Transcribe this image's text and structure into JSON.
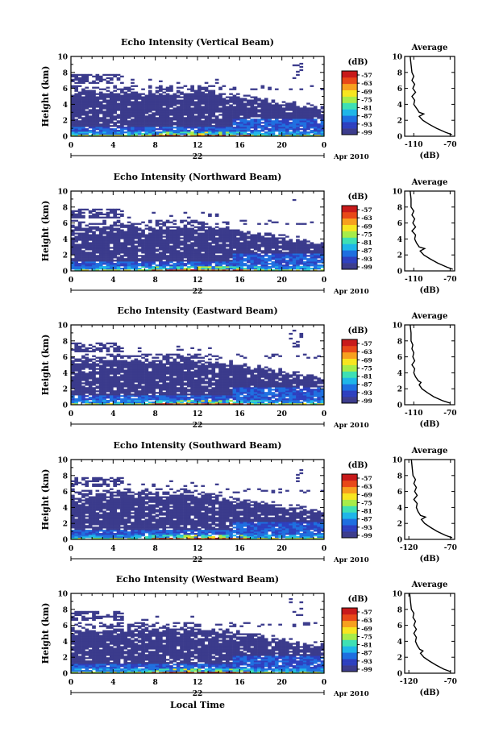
{
  "figure": {
    "bottom_xlabel": "Local Time",
    "colorbar_unit": "(dB)",
    "colorbar_ticks": [
      "-57",
      "-63",
      "-69",
      "-75",
      "-81",
      "-87",
      "-93",
      "-99"
    ],
    "colormap": [
      "#ffffff",
      "#3b3b8c",
      "#2d3fbf",
      "#1e6fe0",
      "#1fb6e8",
      "#3ee0b4",
      "#a6ec48",
      "#f7e51e",
      "#f7a01e",
      "#e84818",
      "#c81a1a"
    ]
  },
  "chart_data": [
    {
      "type": "heatmap",
      "title": "Echo Intensity (Vertical Beam)",
      "ylabel": "Height (km)",
      "ylim": [
        0,
        10
      ],
      "yticks": [
        "0",
        "2",
        "4",
        "6",
        "8",
        "10"
      ],
      "xlim": [
        0,
        24
      ],
      "xticks": [
        "0",
        "4",
        "8",
        "12",
        "16",
        "20",
        "0"
      ],
      "date_label": "22",
      "month_label": "Apr 2010",
      "color_range_dB": [
        -99,
        -57
      ],
      "average": {
        "title": "Average",
        "xlabel": "(dB)",
        "xticks": [
          "-110",
          "-70"
        ],
        "xlim": [
          -120,
          -65
        ],
        "yticks": [
          "0",
          "2",
          "4",
          "6",
          "8",
          "10"
        ],
        "height_km": [
          0.2,
          0.5,
          1.0,
          1.5,
          2.0,
          2.5,
          2.8,
          3.0,
          3.5,
          4.0,
          4.5,
          5.0,
          5.5,
          6.0,
          6.5,
          7.0,
          7.5,
          8.0,
          9.0,
          10.0
        ],
        "value_dB": [
          -68,
          -75,
          -85,
          -93,
          -100,
          -104,
          -99,
          -104,
          -107,
          -110,
          -109,
          -112,
          -108,
          -111,
          -109,
          -112,
          -110,
          -112,
          -113,
          -114
        ]
      }
    },
    {
      "type": "heatmap",
      "title": "Echo Intensity (Northward Beam)",
      "ylabel": "Height (km)",
      "ylim": [
        0,
        10
      ],
      "yticks": [
        "0",
        "2",
        "4",
        "6",
        "8",
        "10"
      ],
      "xlim": [
        0,
        24
      ],
      "xticks": [
        "0",
        "4",
        "8",
        "12",
        "16",
        "20",
        "0"
      ],
      "date_label": "22",
      "month_label": "Apr 2010",
      "color_range_dB": [
        -99,
        -57
      ],
      "average": {
        "title": "Average",
        "xlabel": "(dB)",
        "xticks": [
          "-110",
          "-70"
        ],
        "xlim": [
          -120,
          -65
        ],
        "yticks": [
          "0",
          "2",
          "4",
          "6",
          "8",
          "10"
        ],
        "height_km": [
          0.2,
          0.5,
          1.0,
          1.5,
          2.0,
          2.5,
          2.8,
          3.0,
          3.5,
          4.0,
          4.5,
          5.0,
          5.5,
          6.0,
          6.5,
          7.0,
          7.5,
          8.0,
          9.0,
          10.0
        ],
        "value_dB": [
          -67,
          -74,
          -84,
          -92,
          -99,
          -103,
          -98,
          -104,
          -107,
          -109,
          -108,
          -112,
          -108,
          -111,
          -109,
          -112,
          -110,
          -113,
          -113,
          -114
        ]
      }
    },
    {
      "type": "heatmap",
      "title": "Echo Intensity (Eastward Beam)",
      "ylabel": "Height (km)",
      "ylim": [
        0,
        10
      ],
      "yticks": [
        "0",
        "2",
        "4",
        "6",
        "8",
        "10"
      ],
      "xlim": [
        0,
        24
      ],
      "xticks": [
        "0",
        "4",
        "8",
        "12",
        "16",
        "20",
        "0"
      ],
      "date_label": "22",
      "month_label": "Apr 2010",
      "color_range_dB": [
        -99,
        -57
      ],
      "average": {
        "title": "Average",
        "xlabel": "(dB)",
        "xticks": [
          "-110",
          "-70"
        ],
        "xlim": [
          -120,
          -65
        ],
        "yticks": [
          "0",
          "2",
          "4",
          "6",
          "8",
          "10"
        ],
        "height_km": [
          0.2,
          0.5,
          1.0,
          1.5,
          2.0,
          2.5,
          2.8,
          3.0,
          3.5,
          4.0,
          4.5,
          5.0,
          5.5,
          6.0,
          6.5,
          7.0,
          7.5,
          8.0,
          9.0,
          10.0
        ],
        "value_dB": [
          -70,
          -78,
          -88,
          -95,
          -101,
          -104,
          -102,
          -105,
          -108,
          -110,
          -109,
          -112,
          -109,
          -111,
          -110,
          -112,
          -111,
          -113,
          -113,
          -114
        ]
      }
    },
    {
      "type": "heatmap",
      "title": "Echo Intensity (Southward Beam)",
      "ylabel": "Height (km)",
      "ylim": [
        0,
        10
      ],
      "yticks": [
        "0",
        "2",
        "4",
        "6",
        "8",
        "10"
      ],
      "xlim": [
        0,
        24
      ],
      "xticks": [
        "0",
        "4",
        "8",
        "12",
        "16",
        "20",
        "0"
      ],
      "date_label": "22",
      "month_label": "Apr 2010",
      "color_range_dB": [
        -99,
        -57
      ],
      "average": {
        "title": "Average",
        "xlabel": "(dB)",
        "xticks": [
          "-120",
          "-70"
        ],
        "xlim": [
          -125,
          -65
        ],
        "yticks": [
          "0",
          "2",
          "4",
          "6",
          "8",
          "10"
        ],
        "height_km": [
          0.2,
          0.5,
          1.0,
          1.5,
          2.0,
          2.5,
          2.8,
          3.0,
          3.5,
          4.0,
          4.5,
          5.0,
          5.5,
          6.0,
          6.5,
          7.0,
          7.5,
          8.0,
          9.0,
          10.0
        ],
        "value_dB": [
          -68,
          -76,
          -86,
          -94,
          -101,
          -105,
          -100,
          -106,
          -109,
          -111,
          -110,
          -114,
          -110,
          -113,
          -111,
          -114,
          -112,
          -115,
          -116,
          -117
        ]
      }
    },
    {
      "type": "heatmap",
      "title": "Echo Intensity (Westward Beam)",
      "ylabel": "Height (km)",
      "ylim": [
        0,
        10
      ],
      "yticks": [
        "0",
        "2",
        "4",
        "6",
        "8",
        "10"
      ],
      "xlim": [
        0,
        24
      ],
      "xticks": [
        "0",
        "4",
        "8",
        "12",
        "16",
        "20",
        "0"
      ],
      "date_label": "22",
      "month_label": "Apr 2010",
      "color_range_dB": [
        -99,
        -57
      ],
      "average": {
        "title": "Average",
        "xlabel": "(dB)",
        "xticks": [
          "-120",
          "-70"
        ],
        "xlim": [
          -125,
          -65
        ],
        "yticks": [
          "0",
          "2",
          "4",
          "6",
          "8",
          "10"
        ],
        "height_km": [
          0.2,
          0.5,
          1.0,
          1.5,
          2.0,
          2.5,
          2.8,
          3.0,
          3.5,
          4.0,
          4.5,
          5.0,
          5.5,
          6.0,
          6.5,
          7.0,
          7.5,
          8.0,
          9.0,
          10.0
        ],
        "value_dB": [
          -70,
          -78,
          -87,
          -95,
          -102,
          -106,
          -103,
          -107,
          -110,
          -112,
          -111,
          -114,
          -111,
          -114,
          -112,
          -115,
          -114,
          -117,
          -118,
          -119
        ]
      }
    }
  ]
}
